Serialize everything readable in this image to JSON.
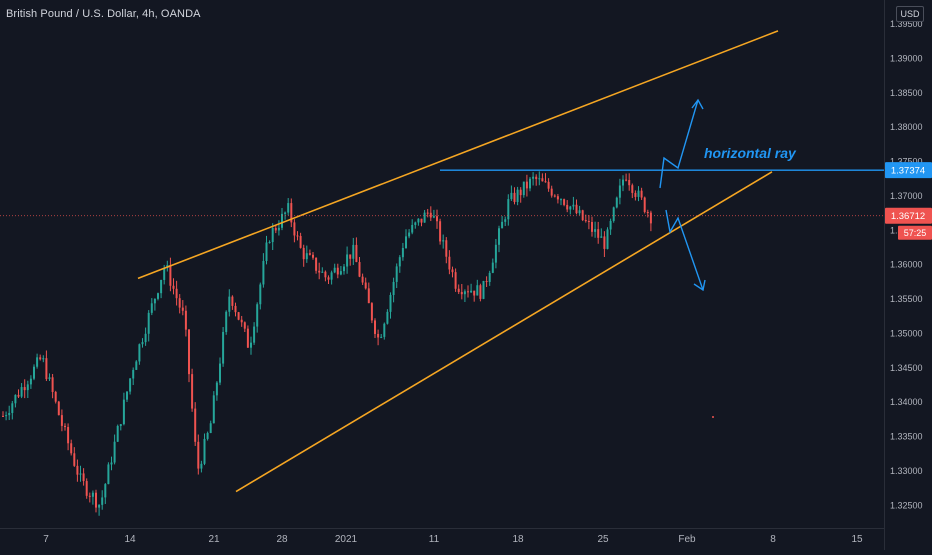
{
  "header": {
    "title": "British Pound / U.S. Dollar, 4h, OANDA"
  },
  "currency_button": "USD",
  "annotations": {
    "ray_label": "horizontal ray"
  },
  "colors": {
    "background": "#131722",
    "up": "#26a69a",
    "down": "#ef5350",
    "trendline": "#f5a623",
    "ray": "#2196f3",
    "current_price_line": "#ef5350"
  },
  "price_axis": {
    "ticks": [
      "1.39500",
      "1.39000",
      "1.38500",
      "1.38000",
      "1.37500",
      "1.37000",
      "1.36500",
      "1.36000",
      "1.35500",
      "1.35000",
      "1.34500",
      "1.34000",
      "1.33500",
      "1.33000",
      "1.32500"
    ]
  },
  "time_axis": {
    "labels": [
      "7",
      "14",
      "21",
      "28",
      "2021",
      "11",
      "18",
      "25",
      "Feb",
      "8",
      "15"
    ]
  },
  "badges": {
    "ray_price": "1.37374",
    "last_price": "1.36712",
    "countdown": "57:25"
  },
  "chart_data": {
    "type": "candlestick",
    "title": "British Pound / U.S. Dollar, 4h, OANDA",
    "ylim": [
      1.3225,
      1.3975
    ],
    "x_labels": [
      "7",
      "14",
      "21",
      "28",
      "2021",
      "11",
      "18",
      "25",
      "Feb",
      "8",
      "15"
    ],
    "anchors": [
      {
        "t": 0,
        "p": 1.338
      },
      {
        "t": 0.06,
        "p": 1.3465
      },
      {
        "t": 0.09,
        "p": 1.337
      },
      {
        "t": 0.12,
        "p": 1.3285
      },
      {
        "t": 0.15,
        "p": 1.325
      },
      {
        "t": 0.2,
        "p": 1.345
      },
      {
        "t": 0.25,
        "p": 1.36
      },
      {
        "t": 0.28,
        "p": 1.352
      },
      {
        "t": 0.3,
        "p": 1.33
      },
      {
        "t": 0.32,
        "p": 1.3365
      },
      {
        "t": 0.35,
        "p": 1.356
      },
      {
        "t": 0.38,
        "p": 1.348
      },
      {
        "t": 0.41,
        "p": 1.364
      },
      {
        "t": 0.44,
        "p": 1.368
      },
      {
        "t": 0.46,
        "p": 1.362
      },
      {
        "t": 0.5,
        "p": 1.358
      },
      {
        "t": 0.54,
        "p": 1.362
      },
      {
        "t": 0.58,
        "p": 1.349
      },
      {
        "t": 0.62,
        "p": 1.364
      },
      {
        "t": 0.66,
        "p": 1.368
      },
      {
        "t": 0.7,
        "p": 1.357
      },
      {
        "t": 0.74,
        "p": 1.356
      },
      {
        "t": 0.78,
        "p": 1.369
      },
      {
        "t": 0.82,
        "p": 1.3725
      },
      {
        "t": 0.86,
        "p": 1.37
      },
      {
        "t": 0.9,
        "p": 1.366
      },
      {
        "t": 0.93,
        "p": 1.363
      },
      {
        "t": 0.96,
        "p": 1.3735
      },
      {
        "t": 0.98,
        "p": 1.37
      },
      {
        "t": 1.0,
        "p": 1.3671
      }
    ],
    "trendlines": [
      {
        "name": "upper-channel-line",
        "start": {
          "date": "Dec 14",
          "price": 1.358
        },
        "end": {
          "date": "Feb 10",
          "price": 1.394
        }
      },
      {
        "name": "lower-channel-line",
        "start": {
          "date": "Dec 22",
          "price": 1.327
        },
        "end": {
          "date": "Feb 8",
          "price": 1.3735
        }
      }
    ],
    "horizontal_ray": {
      "price": 1.37374,
      "from_date": "Jan 11"
    },
    "current_price": 1.36712,
    "scenario_arrows": [
      "up",
      "down"
    ]
  }
}
